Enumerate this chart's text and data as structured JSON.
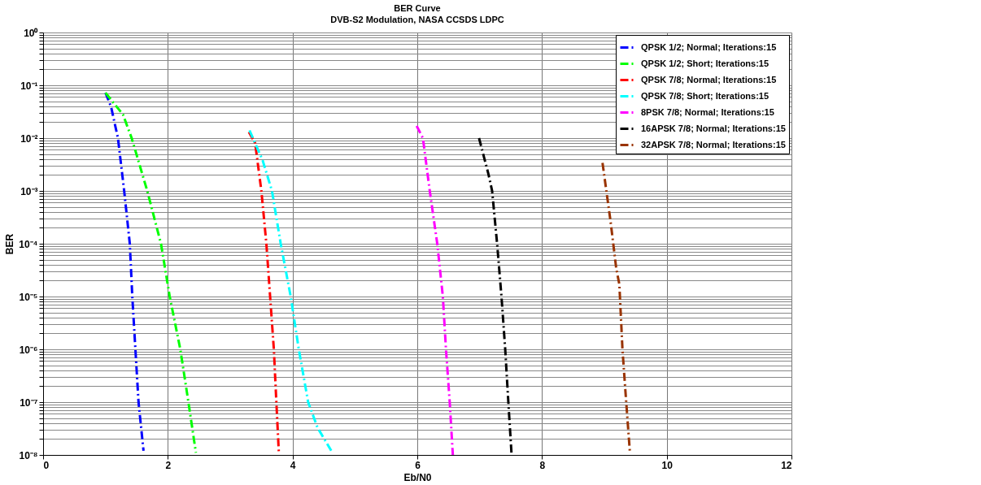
{
  "chart_data": {
    "type": "line",
    "title": "BER Curve",
    "subtitle": "DVB-S2 Modulation, NASA CCSDS LDPC",
    "xlabel": "Eb/N0",
    "ylabel": "BER",
    "xlim": [
      0,
      12
    ],
    "xticks": [
      0,
      2,
      4,
      6,
      8,
      10,
      12
    ],
    "ylim": [
      1e-08,
      1
    ],
    "log": "y",
    "grid": true,
    "legend": "top right",
    "line_style": "dashed",
    "marker": "none",
    "yticks": [
      {
        "value": 1e-08,
        "label": "10⁻⁸"
      },
      {
        "value": 1e-07,
        "label": "10⁻⁷"
      },
      {
        "value": 1e-06,
        "label": "10⁻⁶"
      },
      {
        "value": 1e-05,
        "label": "10⁻⁵"
      },
      {
        "value": 0.0001,
        "label": "10⁻⁴"
      },
      {
        "value": 0.001,
        "label": "10⁻³"
      },
      {
        "value": 0.01,
        "label": "10⁻²"
      },
      {
        "value": 0.1,
        "label": "10⁻¹"
      },
      {
        "value": 1,
        "label": "10⁰"
      },
      {
        "value": 2e-08,
        "label": null
      },
      {
        "value": 3e-08,
        "label": null
      },
      {
        "value": 4e-08,
        "label": null
      },
      {
        "value": 5e-08,
        "label": null
      },
      {
        "value": 6e-08,
        "label": null
      },
      {
        "value": 7e-08,
        "label": null
      },
      {
        "value": 8e-08,
        "label": null
      },
      {
        "value": 9e-08,
        "label": null
      },
      {
        "value": 2e-07,
        "label": null
      },
      {
        "value": 3e-07,
        "label": null
      },
      {
        "value": 4e-07,
        "label": null
      },
      {
        "value": 5e-07,
        "label": null
      },
      {
        "value": 6e-07,
        "label": null
      },
      {
        "value": 7e-07,
        "label": null
      },
      {
        "value": 8e-07,
        "label": null
      },
      {
        "value": 9e-07,
        "label": null
      },
      {
        "value": 2e-06,
        "label": null
      },
      {
        "value": 3e-06,
        "label": null
      },
      {
        "value": 4e-06,
        "label": null
      },
      {
        "value": 5e-06,
        "label": null
      },
      {
        "value": 6e-06,
        "label": null
      },
      {
        "value": 7e-06,
        "label": null
      },
      {
        "value": 8e-06,
        "label": null
      },
      {
        "value": 9e-06,
        "label": null
      },
      {
        "value": 2e-05,
        "label": null
      },
      {
        "value": 3e-05,
        "label": null
      },
      {
        "value": 4e-05,
        "label": null
      },
      {
        "value": 5e-05,
        "label": null
      },
      {
        "value": 6e-05,
        "label": null
      },
      {
        "value": 7e-05,
        "label": null
      },
      {
        "value": 8e-05,
        "label": null
      },
      {
        "value": 9e-05,
        "label": null
      },
      {
        "value": 0.0002,
        "label": null
      },
      {
        "value": 0.0003,
        "label": null
      },
      {
        "value": 0.0004,
        "label": null
      },
      {
        "value": 0.0005,
        "label": null
      },
      {
        "value": 0.0006,
        "label": null
      },
      {
        "value": 0.0007,
        "label": null
      },
      {
        "value": 0.0008,
        "label": null
      },
      {
        "value": 0.0009,
        "label": null
      },
      {
        "value": 0.002,
        "label": null
      },
      {
        "value": 0.003,
        "label": null
      },
      {
        "value": 0.004,
        "label": null
      },
      {
        "value": 0.005,
        "label": null
      },
      {
        "value": 0.006,
        "label": null
      },
      {
        "value": 0.007,
        "label": null
      },
      {
        "value": 0.008,
        "label": null
      },
      {
        "value": 0.009,
        "label": null
      },
      {
        "value": 0.02,
        "label": null
      },
      {
        "value": 0.03,
        "label": null
      },
      {
        "value": 0.04,
        "label": null
      },
      {
        "value": 0.05,
        "label": null
      },
      {
        "value": 0.06,
        "label": null
      },
      {
        "value": 0.07,
        "label": null
      },
      {
        "value": 0.08,
        "label": null
      },
      {
        "value": 0.09,
        "label": null
      },
      {
        "value": 0.2,
        "label": null
      },
      {
        "value": 0.3,
        "label": null
      },
      {
        "value": 0.4,
        "label": null
      },
      {
        "value": 0.5,
        "label": null
      },
      {
        "value": 0.6,
        "label": null
      },
      {
        "value": 0.7,
        "label": null
      },
      {
        "value": 0.8,
        "label": null
      },
      {
        "value": 0.9,
        "label": null
      }
    ],
    "series": [
      {
        "name": "QPSK 1/2; Normal; Iterations:15",
        "color": "#0000ff",
        "x": [
          1.0,
          1.09,
          1.2,
          1.3,
          1.39,
          1.43,
          1.48,
          1.53,
          1.61
        ],
        "values": [
          0.072,
          0.039,
          0.01,
          0.001,
          0.0001,
          1e-05,
          1e-06,
          1e-07,
          1.2e-08
        ]
      },
      {
        "name": "QPSK 1/2; Short; Iterations:15",
        "color": "#00ff00",
        "x": [
          1.0,
          1.28,
          1.42,
          1.67,
          1.89,
          2.03,
          2.2,
          2.33,
          2.45
        ],
        "values": [
          0.072,
          0.028,
          0.01,
          0.001,
          0.0001,
          1e-05,
          1e-06,
          1e-07,
          1.1e-08
        ]
      },
      {
        "name": "QPSK 7/8; Normal; Iterations:15",
        "color": "#ff0000",
        "x": [
          3.3,
          3.4,
          3.5,
          3.58,
          3.64,
          3.7,
          3.74,
          3.78
        ],
        "values": [
          0.013,
          0.008,
          0.001,
          0.0001,
          1e-05,
          1e-06,
          1e-07,
          1.1e-08
        ]
      },
      {
        "name": "QPSK 7/8; Short; Iterations:15",
        "color": "#00ffff",
        "x": [
          3.31,
          3.52,
          3.67,
          3.81,
          3.97,
          4.1,
          4.25,
          4.4,
          4.62
        ],
        "values": [
          0.014,
          0.0038,
          0.001,
          0.0001,
          1e-05,
          1e-06,
          1e-07,
          3.3e-08,
          1.2e-08
        ]
      },
      {
        "name": "8PSK 7/8; Normal; Iterations:15",
        "color": "#ff00ff",
        "x": [
          5.99,
          6.09,
          6.2,
          6.32,
          6.41,
          6.46,
          6.52,
          6.57
        ],
        "values": [
          0.017,
          0.01,
          0.001,
          0.0001,
          1e-05,
          1e-06,
          1e-07,
          1e-08
        ]
      },
      {
        "name": "16APSK 7/8; Normal; Iterations:15",
        "color": "#000000",
        "x": [
          6.99,
          7.14,
          7.2,
          7.28,
          7.35,
          7.41,
          7.46,
          7.51
        ],
        "values": [
          0.01,
          0.0021,
          0.001,
          0.0001,
          1e-05,
          1e-06,
          1e-07,
          1.1e-08
        ]
      },
      {
        "name": "32APSK 7/8; Normal; Iterations:15",
        "color": "#993300",
        "x": [
          8.97,
          9.1,
          9.19,
          9.24,
          9.29,
          9.35,
          9.41
        ],
        "values": [
          0.0034,
          0.00026,
          3.4e-05,
          1.7e-05,
          1e-06,
          1e-07,
          1.1e-08
        ]
      }
    ]
  }
}
